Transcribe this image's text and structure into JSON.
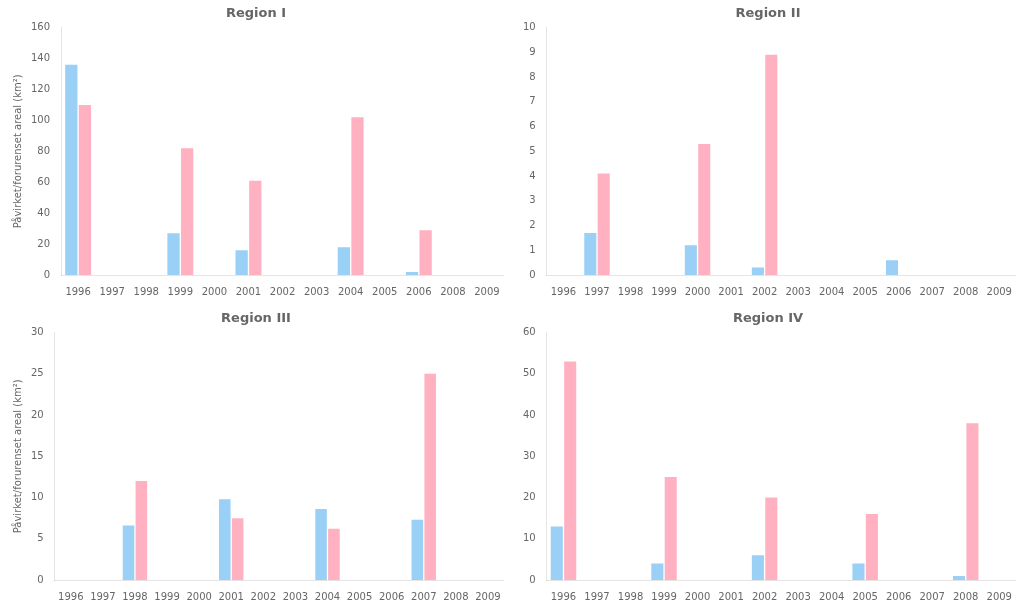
{
  "chart_data": [
    {
      "type": "bar",
      "title": "Region I",
      "ylabel": "Påvirket/forurenset areal (km²)",
      "categories": [
        "1996",
        "1997",
        "1998",
        "1999",
        "2000",
        "2001",
        "2002",
        "2003",
        "2004",
        "2005",
        "2006",
        "2008",
        "2009"
      ],
      "series": [
        {
          "values": [
            136,
            null,
            null,
            27,
            null,
            16,
            null,
            null,
            18,
            null,
            2,
            null,
            null
          ]
        },
        {
          "values": [
            110,
            null,
            null,
            82,
            null,
            61,
            null,
            null,
            102,
            null,
            29,
            null,
            null
          ]
        }
      ],
      "ylim": [
        0,
        160
      ],
      "yticks": [
        0,
        20,
        40,
        60,
        80,
        100,
        120,
        140,
        160
      ],
      "grid": false
    },
    {
      "type": "bar",
      "title": "Region II",
      "categories": [
        "1996",
        "1997",
        "1998",
        "1999",
        "2000",
        "2001",
        "2002",
        "2003",
        "2004",
        "2005",
        "2006",
        "2007",
        "2008",
        "2009"
      ],
      "series": [
        {
          "values": [
            null,
            1.7,
            null,
            null,
            1.2,
            null,
            0.3,
            null,
            null,
            null,
            0.6,
            null,
            null,
            null
          ]
        },
        {
          "values": [
            null,
            4.1,
            null,
            null,
            5.3,
            null,
            8.9,
            null,
            null,
            null,
            0,
            null,
            null,
            null
          ]
        }
      ],
      "ylim": [
        0,
        10
      ],
      "yticks": [
        0,
        1,
        2,
        3,
        4,
        5,
        6,
        7,
        8,
        9,
        10
      ],
      "grid": false
    },
    {
      "type": "bar",
      "title": "Region III",
      "ylabel": "Påvirket/forurenset areal (km²)",
      "categories": [
        "1996",
        "1997",
        "1998",
        "1999",
        "2000",
        "2001",
        "2002",
        "2003",
        "2004",
        "2005",
        "2006",
        "2007",
        "2008",
        "2009"
      ],
      "series": [
        {
          "values": [
            null,
            null,
            6.6,
            null,
            null,
            9.8,
            null,
            null,
            8.6,
            null,
            null,
            7.3,
            null,
            null
          ]
        },
        {
          "values": [
            null,
            null,
            12,
            null,
            null,
            7.5,
            null,
            null,
            6.2,
            null,
            null,
            25,
            null,
            null
          ]
        }
      ],
      "ylim": [
        0,
        30
      ],
      "yticks": [
        0,
        5,
        10,
        15,
        20,
        25,
        30
      ],
      "grid": false
    },
    {
      "type": "bar",
      "title": "Region IV",
      "categories": [
        "1996",
        "1997",
        "1998",
        "1999",
        "2000",
        "2001",
        "2002",
        "2003",
        "2004",
        "2005",
        "2006",
        "2007",
        "2008",
        "2009"
      ],
      "series": [
        {
          "values": [
            13,
            null,
            null,
            4,
            null,
            null,
            6,
            null,
            null,
            4,
            null,
            null,
            1,
            null
          ]
        },
        {
          "values": [
            53,
            null,
            null,
            25,
            null,
            null,
            20,
            null,
            null,
            16,
            null,
            null,
            38,
            null
          ]
        }
      ],
      "ylim": [
        0,
        60
      ],
      "yticks": [
        0,
        10,
        20,
        30,
        40,
        50,
        60
      ],
      "grid": false
    }
  ]
}
